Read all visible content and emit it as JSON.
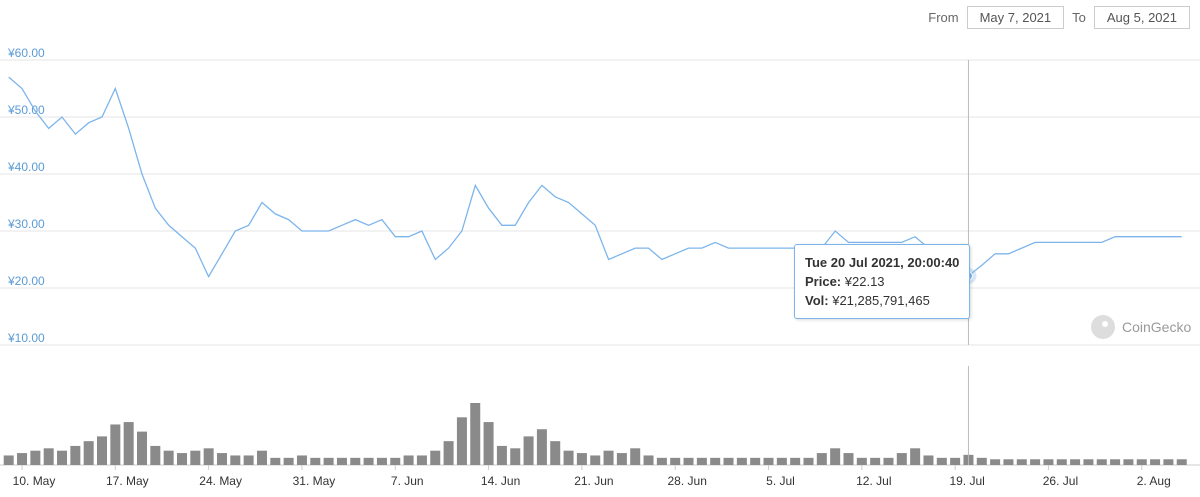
{
  "header": {
    "from_label": "From",
    "from_date": "May 7, 2021",
    "to_label": "To",
    "to_date": "Aug 5, 2021"
  },
  "watermark": "CoinGecko",
  "chart_data": {
    "type": "line",
    "color": "#7cb5ec",
    "volume_color": "#8a8a8a",
    "categories": [
      null,
      "10. May",
      null,
      null,
      null,
      null,
      null,
      null,
      "17. May",
      null,
      null,
      null,
      null,
      null,
      null,
      "24. May",
      null,
      null,
      null,
      null,
      null,
      null,
      "31. May",
      null,
      null,
      null,
      null,
      null,
      null,
      "7. Jun",
      null,
      null,
      null,
      null,
      null,
      null,
      "14. Jun",
      null,
      null,
      null,
      null,
      null,
      null,
      "21. Jun",
      null,
      null,
      null,
      null,
      null,
      null,
      "28. Jun",
      null,
      null,
      null,
      null,
      null,
      null,
      "5. Jul",
      null,
      null,
      null,
      null,
      null,
      null,
      "12. Jul",
      null,
      null,
      null,
      null,
      null,
      null,
      "19. Jul",
      null,
      null,
      null,
      null,
      null,
      null,
      "26. Jul",
      null,
      null,
      null,
      null,
      null,
      null,
      "2. Aug",
      null,
      null,
      null
    ],
    "values": [
      57,
      55,
      51,
      48,
      50,
      47,
      49,
      50,
      55,
      48,
      40,
      34,
      31,
      29,
      27,
      22,
      26,
      30,
      31,
      35,
      33,
      32,
      30,
      30,
      30,
      31,
      32,
      31,
      32,
      29,
      29,
      30,
      25,
      27,
      30,
      38,
      34,
      31,
      31,
      35,
      38,
      36,
      35,
      33,
      31,
      25,
      26,
      27,
      27,
      25,
      26,
      27,
      27,
      28,
      27,
      27,
      27,
      27,
      27,
      27,
      27,
      27,
      30,
      28,
      28,
      28,
      28,
      28,
      29,
      27,
      27,
      25,
      22.13,
      24,
      26,
      26,
      27,
      28,
      28,
      28,
      28,
      28,
      28,
      29,
      29,
      29,
      29,
      29,
      29
    ],
    "volumes": [
      20000000000.0,
      25000000000.0,
      30000000000.0,
      35000000000.0,
      30000000000.0,
      40000000000.0,
      50000000000.0,
      60000000000.0,
      85000000000.0,
      90000000000.0,
      70000000000.0,
      40000000000.0,
      30000000000.0,
      25000000000.0,
      30000000000.0,
      35000000000.0,
      25000000000.0,
      20000000000.0,
      20000000000.0,
      30000000000.0,
      15000000000.0,
      15000000000.0,
      20000000000.0,
      15000000000.0,
      15000000000.0,
      15000000000.0,
      15000000000.0,
      15000000000.0,
      15000000000.0,
      15000000000.0,
      20000000000.0,
      20000000000.0,
      30000000000.0,
      50000000000.0,
      100000000000.0,
      130000000000.0,
      90000000000.0,
      40000000000.0,
      35000000000.0,
      60000000000.0,
      75000000000.0,
      50000000000.0,
      30000000000.0,
      25000000000.0,
      20000000000.0,
      30000000000.0,
      25000000000.0,
      35000000000.0,
      20000000000.0,
      15000000000.0,
      15000000000.0,
      15000000000.0,
      15000000000.0,
      15000000000.0,
      15000000000.0,
      15000000000.0,
      15000000000.0,
      15000000000.0,
      15000000000.0,
      15000000000.0,
      15000000000.0,
      25000000000.0,
      35000000000.0,
      25000000000.0,
      15000000000.0,
      15000000000.0,
      15000000000.0,
      25000000000.0,
      35000000000.0,
      20000000000.0,
      15000000000.0,
      15000000000.0,
      21285791465,
      15000000000.0,
      12000000000.0,
      12000000000.0,
      12000000000.0,
      12000000000.0,
      12000000000.0,
      12000000000.0,
      12000000000.0,
      12000000000.0,
      12000000000.0,
      12000000000.0,
      12000000000.0,
      12000000000.0,
      12000000000.0,
      12000000000.0,
      12000000000.0
    ],
    "ylim": [
      10,
      60
    ],
    "yticks": [
      {
        "value": 10,
        "label": "¥10.00"
      },
      {
        "value": 20,
        "label": "¥20.00"
      },
      {
        "value": 30,
        "label": "¥30.00"
      },
      {
        "value": 40,
        "label": "¥40.00"
      },
      {
        "value": 50,
        "label": "¥50.00"
      },
      {
        "value": 60,
        "label": "¥60.00"
      }
    ],
    "grid": true,
    "highlight_index": 72,
    "tooltip": {
      "date": "Tue 20 Jul 2021, 20:00:40",
      "price_label": "Price:",
      "price": "¥22.13",
      "vol_label": "Vol:",
      "vol": "¥21,285,791,465"
    }
  }
}
